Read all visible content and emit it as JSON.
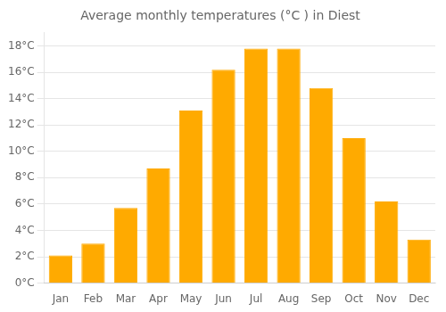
{
  "chart_data": {
    "type": "bar",
    "title": "Average monthly temperatures (°C ) in Diest",
    "categories": [
      "Jan",
      "Feb",
      "Mar",
      "Apr",
      "May",
      "Jun",
      "Jul",
      "Aug",
      "Sep",
      "Oct",
      "Nov",
      "Dec"
    ],
    "values": [
      2.1,
      3.0,
      5.7,
      8.7,
      13.1,
      16.2,
      17.8,
      17.8,
      14.8,
      11.0,
      6.2,
      3.3
    ],
    "color": "#FFAA00",
    "ylim": [
      0,
      19
    ],
    "yticks": [
      {
        "value": 0,
        "label": "0°C"
      },
      {
        "value": 2,
        "label": "2°C"
      },
      {
        "value": 4,
        "label": "4°C"
      },
      {
        "value": 6,
        "label": "6°C"
      },
      {
        "value": 8,
        "label": "8°C"
      },
      {
        "value": 10,
        "label": "10°C"
      },
      {
        "value": 12,
        "label": "12°C"
      },
      {
        "value": 14,
        "label": "14°C"
      },
      {
        "value": 16,
        "label": "16°C"
      },
      {
        "value": 18,
        "label": "18°C"
      }
    ],
    "grid": true
  }
}
